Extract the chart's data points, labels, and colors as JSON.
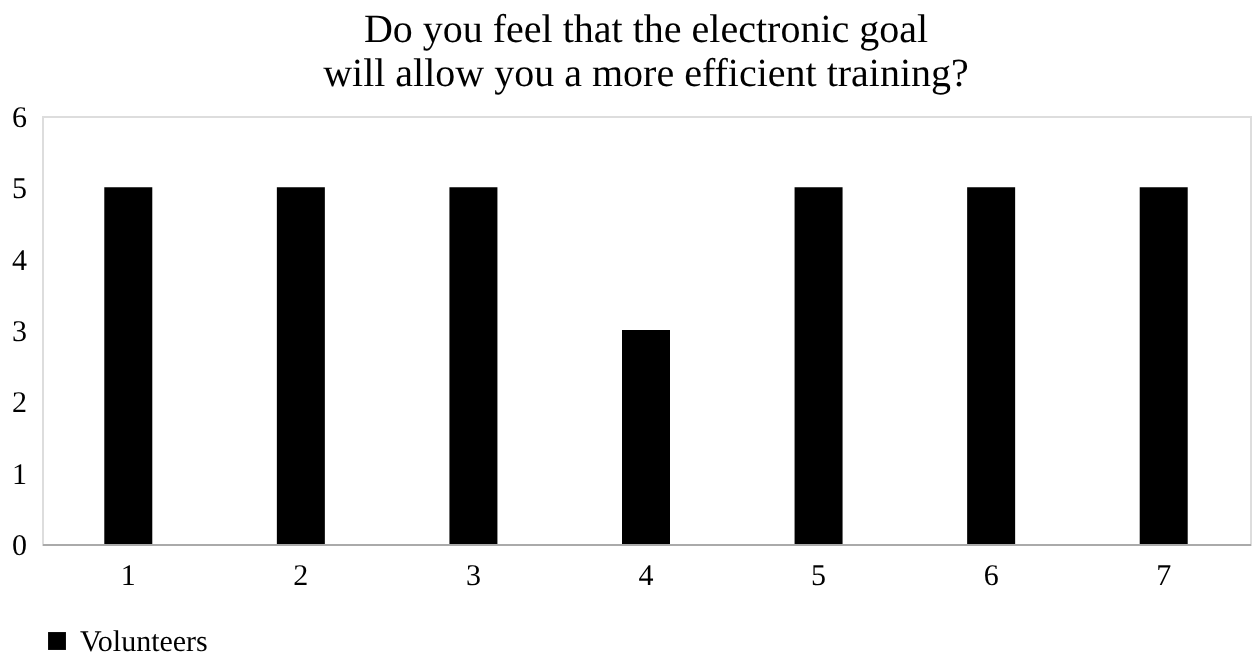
{
  "chart_data": {
    "type": "bar",
    "title": "Do you feel that the electronic goal will allow you a more efficient training?",
    "categories": [
      "1",
      "2",
      "3",
      "4",
      "5",
      "6",
      "7"
    ],
    "series": [
      {
        "name": "Volunteers",
        "color": "#000000",
        "values": [
          5,
          5,
          5,
          3,
          5,
          5,
          5
        ]
      }
    ],
    "ylim": [
      0,
      6
    ],
    "yticks": [
      0,
      1,
      2,
      3,
      4,
      5,
      6
    ],
    "grid": false,
    "legend": "bottom"
  }
}
